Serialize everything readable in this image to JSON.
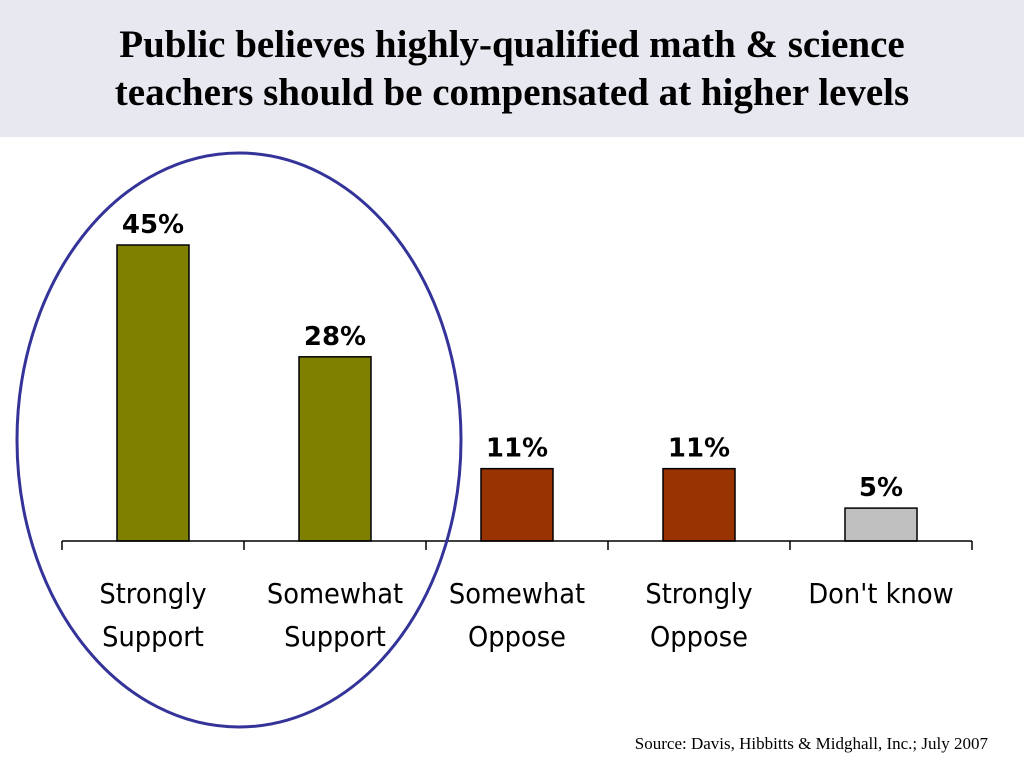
{
  "title": {
    "line1": "Public believes highly-qualified math & science",
    "line2": "teachers should be compensated at higher levels"
  },
  "source": "Source:  Davis, Hibbitts & Midghall, Inc.; July 2007",
  "chart_data": {
    "type": "bar",
    "title": "Public believes highly-qualified math & science teachers should be compensated at higher levels",
    "categories": [
      [
        "Strongly",
        "Support"
      ],
      [
        "Somewhat",
        "Support"
      ],
      [
        "Somewhat",
        "Oppose"
      ],
      [
        "Strongly",
        "Oppose"
      ],
      [
        "Don't know"
      ]
    ],
    "values": [
      45,
      28,
      11,
      11,
      5
    ],
    "data_labels": [
      "45%",
      "28%",
      "11%",
      "11%",
      "5%"
    ],
    "colors": [
      "#7f7f00",
      "#7f7f00",
      "#993300",
      "#993300",
      "#c0c0c0"
    ],
    "ylim": [
      0,
      50
    ],
    "xlabel": "",
    "ylabel": "",
    "grid": false,
    "highlight_ellipse_color": "#333399"
  }
}
